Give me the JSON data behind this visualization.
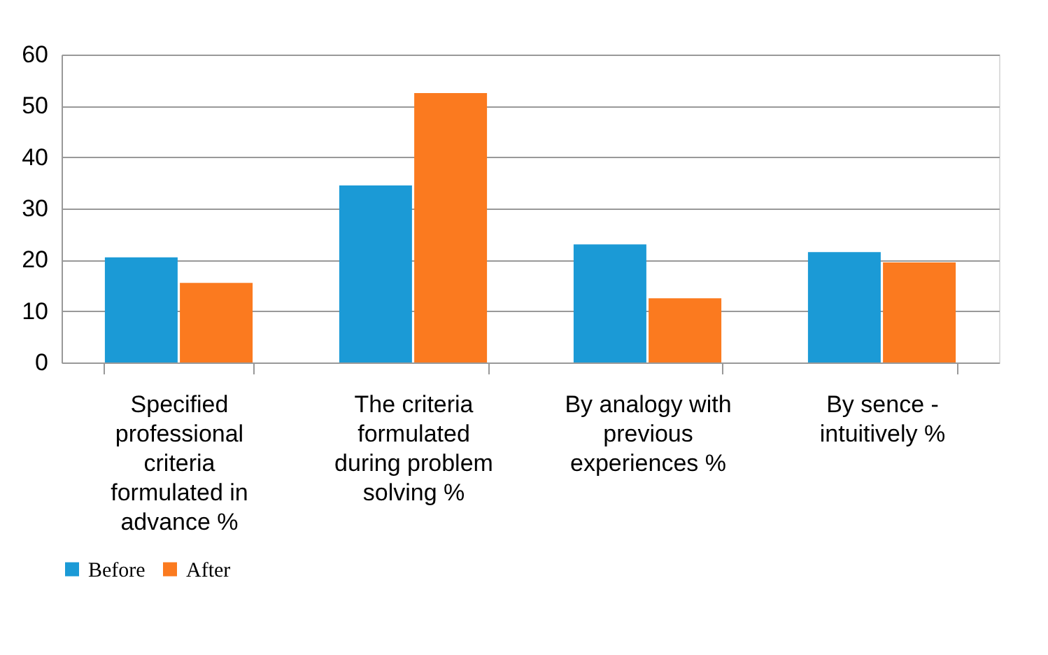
{
  "chart_data": {
    "type": "bar",
    "categories": [
      "Specified professional criteria formulated in advance %",
      "The criteria formulated during problem solving %",
      "By analogy with previous experiences %",
      "By sence - intuitively %"
    ],
    "series": [
      {
        "name": "Before",
        "color": "#1b9ad6",
        "values": [
          20.5,
          34.5,
          23,
          21.5
        ]
      },
      {
        "name": "After",
        "color": "#fb7a1f",
        "values": [
          15.5,
          52.5,
          12.5,
          19.5
        ]
      }
    ],
    "ylim": [
      0,
      60
    ],
    "yticks": [
      0,
      10,
      20,
      30,
      40,
      50,
      60
    ],
    "grid": "y",
    "legend": "bottom"
  }
}
